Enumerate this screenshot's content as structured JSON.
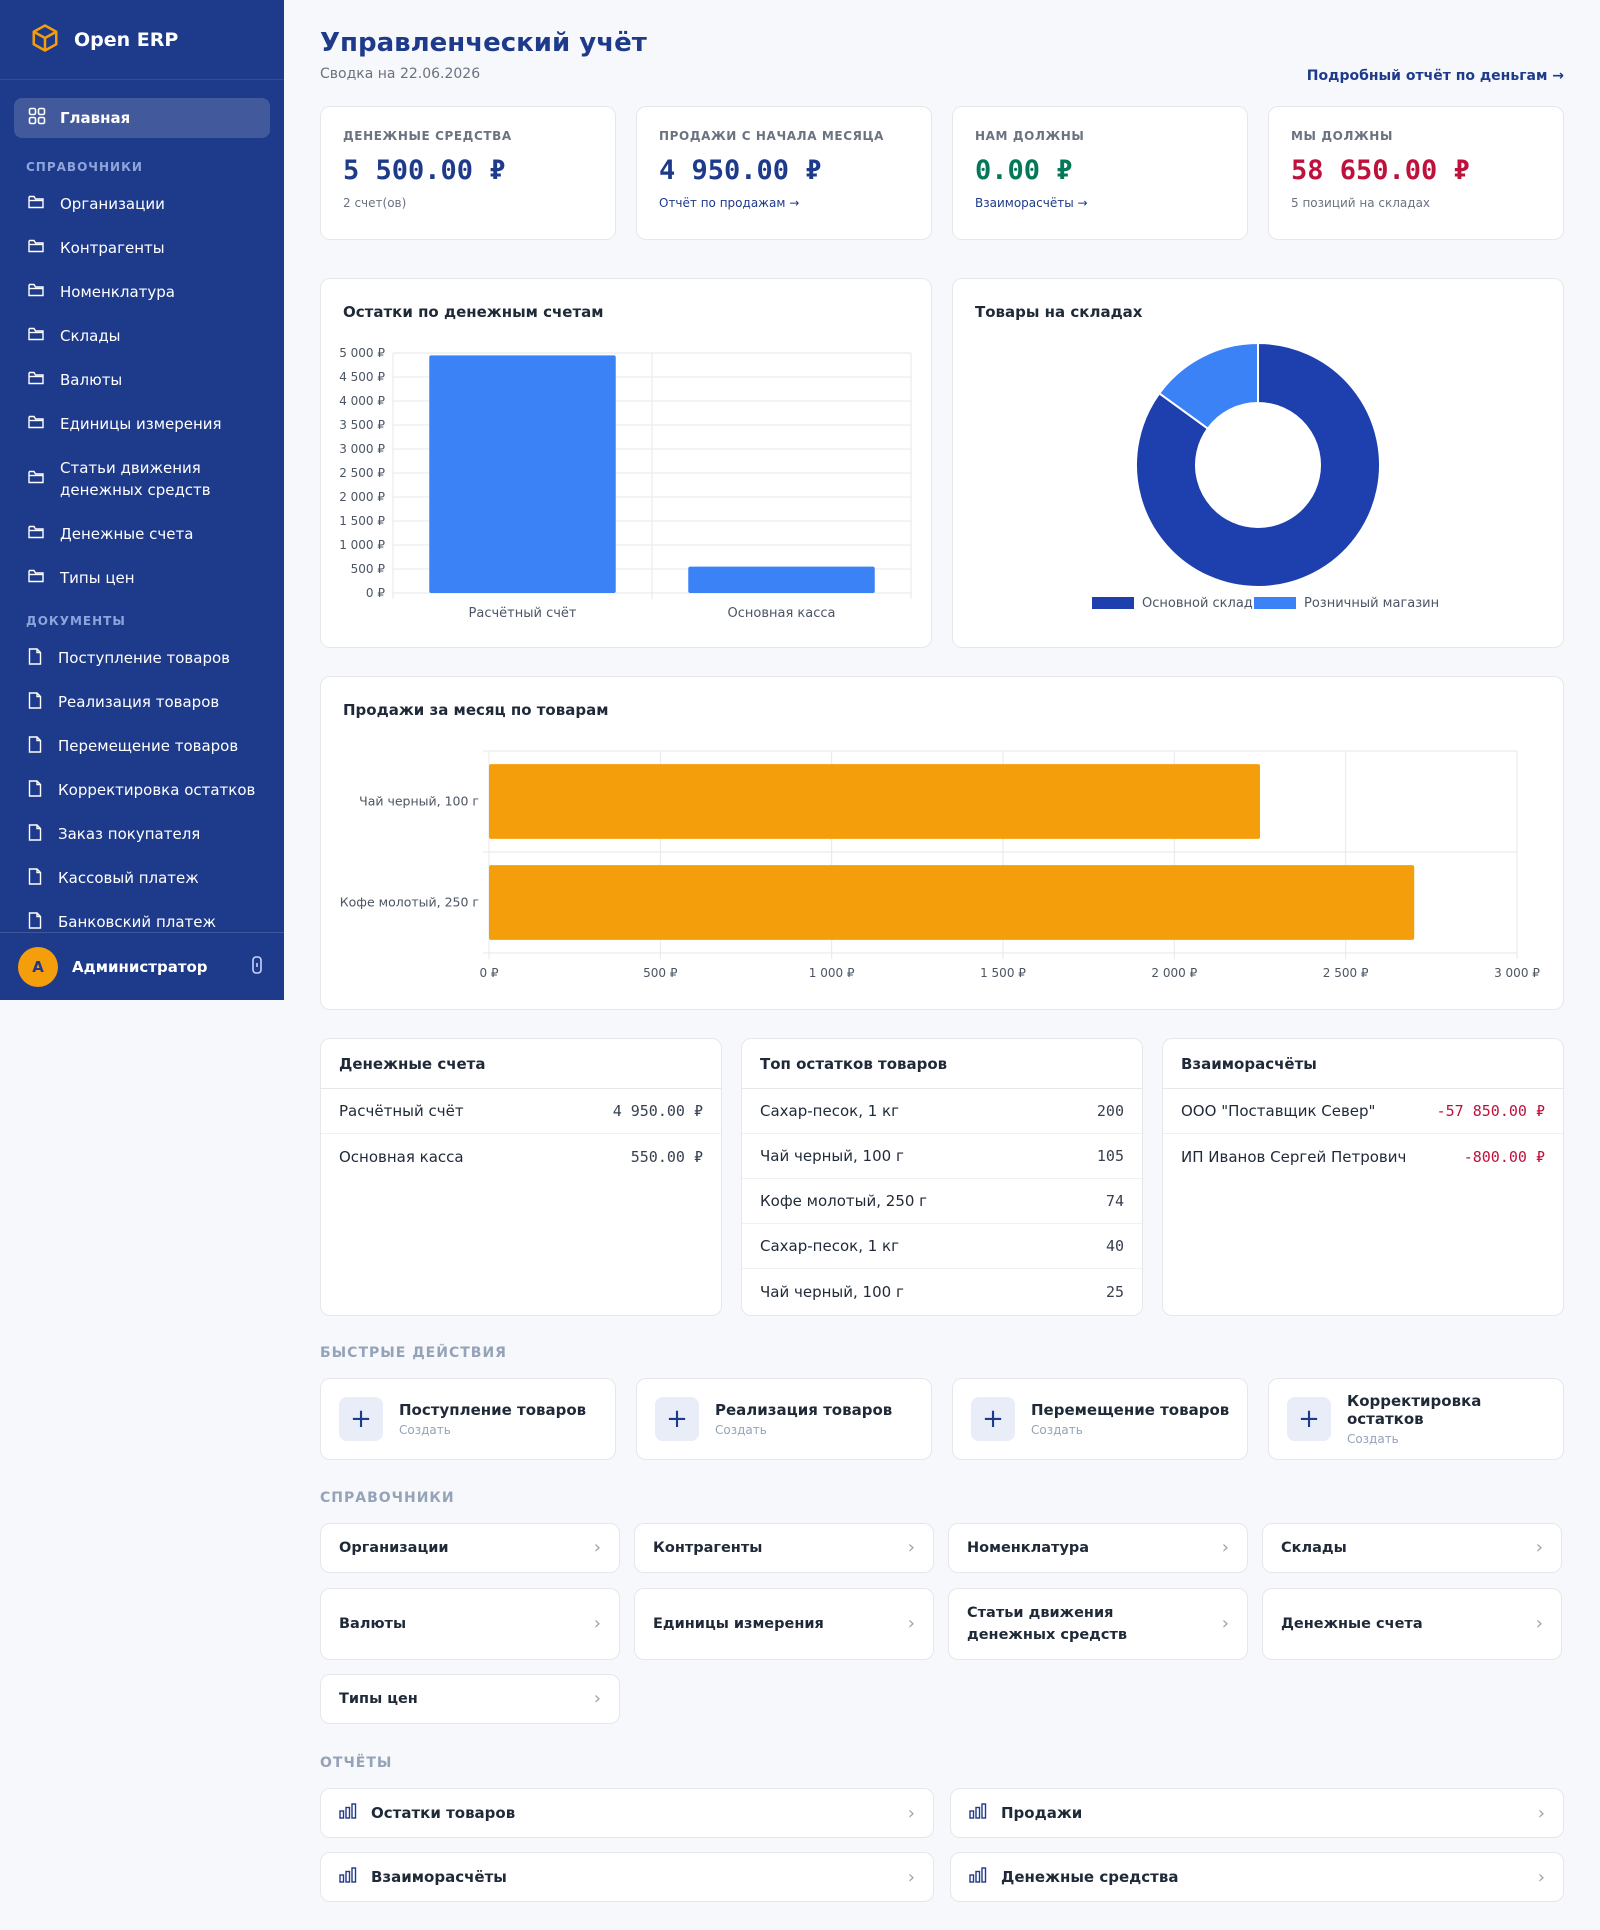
{
  "app": {
    "name": "Open ERP"
  },
  "sidebar": {
    "home": "Главная",
    "section_refs": "СПРАВОЧНИКИ",
    "refs": [
      {
        "label": "Организации"
      },
      {
        "label": "Контрагенты"
      },
      {
        "label": "Номенклатура"
      },
      {
        "label": "Склады"
      },
      {
        "label": "Валюты"
      },
      {
        "label": "Единицы измерения"
      },
      {
        "label": "Статьи движения денежных средств"
      },
      {
        "label": "Денежные счета"
      },
      {
        "label": "Типы цен"
      }
    ],
    "section_docs": "ДОКУМЕНТЫ",
    "docs": [
      {
        "label": "Поступление товаров"
      },
      {
        "label": "Реализация товаров"
      },
      {
        "label": "Перемещение товаров"
      },
      {
        "label": "Корректировка остатков"
      },
      {
        "label": "Заказ покупателя"
      },
      {
        "label": "Кассовый платеж"
      },
      {
        "label": "Банковский платеж"
      }
    ],
    "user": {
      "initial": "А",
      "name": "Администратор"
    }
  },
  "header": {
    "title": "Управленческий учёт",
    "subtitle": "Сводка на 22.06.2026",
    "report_link": "Подробный отчёт по деньгам →"
  },
  "kpis": [
    {
      "label": "ДЕНЕЖНЫЕ СРЕДСТВА",
      "value": "5 500.00 ₽",
      "note": "2 счет(ов)",
      "color": "#1e3a8a"
    },
    {
      "label": "ПРОДАЖИ С НАЧАЛА МЕСЯЦА",
      "value": "4 950.00 ₽",
      "link": "Отчёт по продажам →",
      "color": "#1e3a8a"
    },
    {
      "label": "НАМ ДОЛЖНЫ",
      "value": "0.00 ₽",
      "link": "Взаиморасчёты →",
      "color": "#047857"
    },
    {
      "label": "МЫ ДОЛЖНЫ",
      "value": "58 650.00 ₽",
      "note": "5 позиций на складах",
      "color": "#be123c"
    }
  ],
  "chart_data": [
    {
      "type": "bar",
      "title": "Остатки по денежным счетам",
      "categories": [
        "Расчётный счёт",
        "Основная касса"
      ],
      "values": [
        4950,
        550
      ],
      "ylim": [
        0,
        5000
      ],
      "yticks": [
        "0 ₽",
        "500 ₽",
        "1 000 ₽",
        "1 500 ₽",
        "2 000 ₽",
        "2 500 ₽",
        "3 000 ₽",
        "3 500 ₽",
        "4 000 ₽",
        "4 500 ₽",
        "5 000 ₽"
      ],
      "color": "#3b82f6",
      "grid": true
    },
    {
      "type": "pie",
      "title": "Товары на складах",
      "categories": [
        "Основной склад",
        "Розничный магазин"
      ],
      "values": [
        85,
        15
      ],
      "colors": [
        "#1e40af",
        "#3b82f6"
      ],
      "legend": "bottom"
    },
    {
      "type": "bar",
      "orientation": "horizontal",
      "title": "Продажи за месяц по товарам",
      "categories": [
        "Чай черный, 100 г",
        "Кофе молотый, 250 г"
      ],
      "values": [
        2250,
        2700
      ],
      "xlim": [
        0,
        3000
      ],
      "xticks": [
        "0 ₽",
        "500 ₽",
        "1 000 ₽",
        "1 500 ₽",
        "2 000 ₽",
        "2 500 ₽",
        "3 000 ₽"
      ],
      "color": "#f59e0b",
      "grid": true
    }
  ],
  "accounts": {
    "title": "Денежные счета",
    "rows": [
      {
        "name": "Расчётный счёт",
        "value": "4 950.00 ₽"
      },
      {
        "name": "Основная касса",
        "value": "550.00 ₽"
      }
    ]
  },
  "top_stock": {
    "title": "Топ остатков товаров",
    "rows": [
      {
        "name": "Сахар-песок, 1 кг",
        "value": "200"
      },
      {
        "name": "Чай черный, 100 г",
        "value": "105"
      },
      {
        "name": "Кофе молотый, 250 г",
        "value": "74"
      },
      {
        "name": "Сахар-песок, 1 кг",
        "value": "40"
      },
      {
        "name": "Чай черный, 100 г",
        "value": "25"
      }
    ]
  },
  "settlements": {
    "title": "Взаиморасчёты",
    "rows": [
      {
        "name": "ООО \"Поставщик Север\"",
        "value": "-57 850.00 ₽"
      },
      {
        "name": "ИП Иванов Сергей Петрович",
        "value": "-800.00 ₽"
      }
    ]
  },
  "quick_actions": {
    "title": "БЫСТРЫЕ ДЕЙСТВИЯ",
    "items": [
      {
        "label": "Поступление товаров",
        "sub": "Создать"
      },
      {
        "label": "Реализация товаров",
        "sub": "Создать"
      },
      {
        "label": "Перемещение товаров",
        "sub": "Создать"
      },
      {
        "label": "Корректировка остатков",
        "sub": "Создать"
      }
    ]
  },
  "references": {
    "title": "СПРАВОЧНИКИ",
    "items": [
      "Организации",
      "Контрагенты",
      "Номенклатура",
      "Склады",
      "Валюты",
      "Единицы измерения",
      "Статьи движения денежных средств",
      "Денежные счета",
      "Типы цен"
    ]
  },
  "reports": {
    "title": "ОТЧЁТЫ",
    "items": [
      "Остатки товаров",
      "Продажи",
      "Взаиморасчёты",
      "Денежные средства"
    ]
  }
}
